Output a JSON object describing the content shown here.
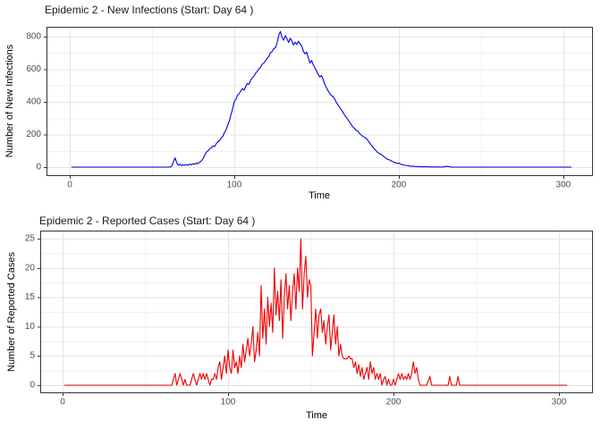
{
  "appearance": {
    "background": "#FFFFFF",
    "panel_background": "#FFFFFF",
    "panel_border": "#333333",
    "grid_major": "#E4E4E4",
    "grid_minor": "#F1F1F1",
    "tick_mark_color": "#333333",
    "tick_label_color": "#4D4D4D",
    "title_color": "#1A1A1A"
  },
  "chart_data": [
    {
      "type": "line",
      "title": "Epidemic 2 - New Infections (Start: Day 64 )",
      "xlabel": "Time",
      "ylabel": "Number of New Infections",
      "legend": "none",
      "grid": true,
      "line_color": "#0000E8",
      "x_ticks": [
        0,
        100,
        200,
        300
      ],
      "x_minor_ticks": [
        50,
        150,
        250
      ],
      "y_ticks": [
        0,
        200,
        400,
        600,
        800
      ],
      "y_minor_ticks": [
        100,
        300,
        500,
        700
      ],
      "x_range": [
        1,
        305
      ],
      "y_range": [
        0,
        832
      ],
      "points": [
        [
          1,
          0
        ],
        [
          6,
          0
        ],
        [
          12,
          0
        ],
        [
          18,
          0
        ],
        [
          24,
          0
        ],
        [
          30,
          0
        ],
        [
          36,
          0
        ],
        [
          42,
          0
        ],
        [
          48,
          0
        ],
        [
          54,
          0
        ],
        [
          60,
          0
        ],
        [
          61,
          1
        ],
        [
          62,
          6
        ],
        [
          63,
          32
        ],
        [
          64,
          57
        ],
        [
          65,
          28
        ],
        [
          66,
          12
        ],
        [
          67,
          18
        ],
        [
          68,
          9
        ],
        [
          69,
          15
        ],
        [
          70,
          11
        ],
        [
          71,
          16
        ],
        [
          72,
          12
        ],
        [
          73,
          19
        ],
        [
          74,
          14
        ],
        [
          75,
          21
        ],
        [
          76,
          17
        ],
        [
          77,
          25
        ],
        [
          78,
          21
        ],
        [
          79,
          31
        ],
        [
          80,
          38
        ],
        [
          81,
          52
        ],
        [
          82,
          72
        ],
        [
          83,
          92
        ],
        [
          84,
          99
        ],
        [
          85,
          112
        ],
        [
          86,
          118
        ],
        [
          87,
          130
        ],
        [
          88,
          126
        ],
        [
          89,
          143
        ],
        [
          90,
          155
        ],
        [
          91,
          162
        ],
        [
          92,
          178
        ],
        [
          93,
          188
        ],
        [
          94,
          212
        ],
        [
          95,
          228
        ],
        [
          96,
          258
        ],
        [
          97,
          282
        ],
        [
          98,
          322
        ],
        [
          99,
          358
        ],
        [
          100,
          402
        ],
        [
          101,
          415
        ],
        [
          102,
          442
        ],
        [
          103,
          450
        ],
        [
          104,
          468
        ],
        [
          105,
          482
        ],
        [
          106,
          472
        ],
        [
          107,
          496
        ],
        [
          108,
          512
        ],
        [
          109,
          508
        ],
        [
          110,
          534
        ],
        [
          111,
          548
        ],
        [
          112,
          558
        ],
        [
          113,
          576
        ],
        [
          114,
          588
        ],
        [
          115,
          602
        ],
        [
          116,
          612
        ],
        [
          117,
          632
        ],
        [
          118,
          638
        ],
        [
          119,
          652
        ],
        [
          120,
          668
        ],
        [
          121,
          678
        ],
        [
          122,
          702
        ],
        [
          123,
          708
        ],
        [
          124,
          726
        ],
        [
          125,
          732
        ],
        [
          126,
          762
        ],
        [
          127,
          806
        ],
        [
          128,
          832
        ],
        [
          129,
          796
        ],
        [
          130,
          778
        ],
        [
          131,
          806
        ],
        [
          132,
          788
        ],
        [
          133,
          764
        ],
        [
          134,
          790
        ],
        [
          135,
          774
        ],
        [
          136,
          748
        ],
        [
          137,
          766
        ],
        [
          138,
          752
        ],
        [
          139,
          772
        ],
        [
          140,
          756
        ],
        [
          141,
          744
        ],
        [
          142,
          710
        ],
        [
          143,
          694
        ],
        [
          144,
          706
        ],
        [
          145,
          670
        ],
        [
          146,
          638
        ],
        [
          147,
          654
        ],
        [
          148,
          628
        ],
        [
          149,
          608
        ],
        [
          150,
          590
        ],
        [
          151,
          568
        ],
        [
          152,
          552
        ],
        [
          153,
          562
        ],
        [
          154,
          538
        ],
        [
          155,
          508
        ],
        [
          156,
          488
        ],
        [
          157,
          468
        ],
        [
          158,
          452
        ],
        [
          159,
          438
        ],
        [
          160,
          434
        ],
        [
          161,
          418
        ],
        [
          162,
          398
        ],
        [
          163,
          382
        ],
        [
          164,
          368
        ],
        [
          165,
          352
        ],
        [
          166,
          338
        ],
        [
          167,
          320
        ],
        [
          168,
          306
        ],
        [
          169,
          292
        ],
        [
          170,
          278
        ],
        [
          171,
          262
        ],
        [
          172,
          248
        ],
        [
          173,
          238
        ],
        [
          174,
          226
        ],
        [
          175,
          222
        ],
        [
          176,
          208
        ],
        [
          177,
          198
        ],
        [
          178,
          190
        ],
        [
          179,
          184
        ],
        [
          180,
          178
        ],
        [
          181,
          166
        ],
        [
          182,
          152
        ],
        [
          183,
          138
        ],
        [
          184,
          126
        ],
        [
          185,
          113
        ],
        [
          186,
          103
        ],
        [
          187,
          91
        ],
        [
          188,
          84
        ],
        [
          189,
          79
        ],
        [
          190,
          73
        ],
        [
          191,
          64
        ],
        [
          192,
          56
        ],
        [
          193,
          49
        ],
        [
          194,
          45
        ],
        [
          195,
          41
        ],
        [
          196,
          35
        ],
        [
          197,
          31
        ],
        [
          198,
          27
        ],
        [
          199,
          23
        ],
        [
          200,
          25
        ],
        [
          201,
          19
        ],
        [
          202,
          15
        ],
        [
          203,
          13
        ],
        [
          204,
          11
        ],
        [
          205,
          10
        ],
        [
          206,
          8
        ],
        [
          207,
          6
        ],
        [
          208,
          5
        ],
        [
          209,
          6
        ],
        [
          210,
          4
        ],
        [
          211,
          3
        ],
        [
          212,
          4
        ],
        [
          213,
          2
        ],
        [
          214,
          3
        ],
        [
          215,
          2
        ],
        [
          216,
          3
        ],
        [
          217,
          2
        ],
        [
          218,
          2
        ],
        [
          219,
          1
        ],
        [
          220,
          2
        ],
        [
          221,
          1
        ],
        [
          222,
          1
        ],
        [
          224,
          1
        ],
        [
          226,
          0
        ],
        [
          228,
          3
        ],
        [
          229,
          5
        ],
        [
          230,
          4
        ],
        [
          231,
          2
        ],
        [
          232,
          0
        ],
        [
          236,
          0
        ],
        [
          240,
          0
        ],
        [
          248,
          0
        ],
        [
          256,
          0
        ],
        [
          264,
          0
        ],
        [
          272,
          0
        ],
        [
          280,
          0
        ],
        [
          288,
          0
        ],
        [
          296,
          0
        ],
        [
          305,
          0
        ]
      ]
    },
    {
      "type": "line",
      "title": "Epidemic 2 - Reported Cases (Start: Day 64 )",
      "xlabel": "Time",
      "ylabel": "Number of Reported Cases",
      "legend": "none",
      "grid": true,
      "line_color": "#EE0000",
      "x_ticks": [
        0,
        100,
        200,
        300
      ],
      "x_minor_ticks": [
        50,
        150,
        250
      ],
      "y_ticks": [
        0,
        5,
        10,
        15,
        20,
        25
      ],
      "y_minor_ticks": [
        2.5,
        7.5,
        12.5,
        17.5,
        22.5
      ],
      "x_range": [
        1,
        305
      ],
      "y_range": [
        0,
        25
      ],
      "points": [
        [
          1,
          0
        ],
        [
          10,
          0
        ],
        [
          20,
          0
        ],
        [
          30,
          0
        ],
        [
          40,
          0
        ],
        [
          50,
          0
        ],
        [
          60,
          0
        ],
        [
          65,
          0
        ],
        [
          66,
          0
        ],
        [
          67,
          1
        ],
        [
          68,
          2
        ],
        [
          69,
          0
        ],
        [
          70,
          1
        ],
        [
          71,
          2
        ],
        [
          72,
          1
        ],
        [
          73,
          0
        ],
        [
          74,
          1
        ],
        [
          75,
          0
        ],
        [
          76,
          0
        ],
        [
          77,
          0
        ],
        [
          78,
          1
        ],
        [
          79,
          2
        ],
        [
          80,
          1
        ],
        [
          81,
          0
        ],
        [
          82,
          1
        ],
        [
          83,
          2
        ],
        [
          84,
          1
        ],
        [
          85,
          2
        ],
        [
          86,
          1
        ],
        [
          87,
          2
        ],
        [
          88,
          1
        ],
        [
          89,
          0
        ],
        [
          90,
          1
        ],
        [
          91,
          1
        ],
        [
          92,
          2
        ],
        [
          93,
          1
        ],
        [
          94,
          3
        ],
        [
          95,
          4
        ],
        [
          96,
          1
        ],
        [
          97,
          3
        ],
        [
          98,
          5
        ],
        [
          99,
          2
        ],
        [
          100,
          6
        ],
        [
          101,
          3
        ],
        [
          102,
          2
        ],
        [
          103,
          6
        ],
        [
          104,
          3
        ],
        [
          105,
          4
        ],
        [
          106,
          2
        ],
        [
          107,
          5
        ],
        [
          108,
          3
        ],
        [
          109,
          7
        ],
        [
          110,
          4
        ],
        [
          111,
          6
        ],
        [
          112,
          8
        ],
        [
          113,
          5
        ],
        [
          114,
          7
        ],
        [
          115,
          10
        ],
        [
          116,
          4
        ],
        [
          117,
          6
        ],
        [
          118,
          9
        ],
        [
          119,
          5
        ],
        [
          120,
          17
        ],
        [
          121,
          8
        ],
        [
          122,
          13
        ],
        [
          123,
          7
        ],
        [
          124,
          15
        ],
        [
          125,
          10
        ],
        [
          126,
          14
        ],
        [
          127,
          9
        ],
        [
          128,
          20
        ],
        [
          129,
          12
        ],
        [
          130,
          16
        ],
        [
          131,
          11
        ],
        [
          132,
          18
        ],
        [
          133,
          8
        ],
        [
          134,
          15
        ],
        [
          135,
          19
        ],
        [
          136,
          13
        ],
        [
          137,
          17
        ],
        [
          138,
          11
        ],
        [
          139,
          16
        ],
        [
          140,
          19
        ],
        [
          141,
          13
        ],
        [
          142,
          20
        ],
        [
          143,
          16
        ],
        [
          144,
          25
        ],
        [
          145,
          13
        ],
        [
          146,
          19
        ],
        [
          147,
          22
        ],
        [
          148,
          15
        ],
        [
          149,
          18
        ],
        [
          150,
          17
        ],
        [
          151,
          5
        ],
        [
          152,
          9
        ],
        [
          153,
          13
        ],
        [
          154,
          8
        ],
        [
          155,
          12
        ],
        [
          156,
          13
        ],
        [
          157,
          9
        ],
        [
          158,
          11
        ],
        [
          159,
          7
        ],
        [
          160,
          10
        ],
        [
          161,
          12
        ],
        [
          162,
          6
        ],
        [
          163,
          9
        ],
        [
          164,
          12
        ],
        [
          165,
          7
        ],
        [
          166,
          10
        ],
        [
          167,
          5
        ],
        [
          168,
          7
        ],
        [
          169,
          5
        ],
        [
          170,
          4.5
        ],
        [
          171,
          4.5
        ],
        [
          172,
          4.5
        ],
        [
          173,
          5
        ],
        [
          174,
          4.5
        ],
        [
          175,
          4.5
        ],
        [
          176,
          3
        ],
        [
          177,
          4
        ],
        [
          178,
          2
        ],
        [
          179,
          3.5
        ],
        [
          180,
          1.5
        ],
        [
          181,
          3
        ],
        [
          182,
          1
        ],
        [
          183,
          2
        ],
        [
          184,
          3
        ],
        [
          185,
          1
        ],
        [
          186,
          4
        ],
        [
          187,
          2
        ],
        [
          188,
          3
        ],
        [
          189,
          1
        ],
        [
          190,
          2
        ],
        [
          191,
          1
        ],
        [
          192,
          2
        ],
        [
          193,
          0
        ],
        [
          194,
          1
        ],
        [
          195,
          1.5
        ],
        [
          196,
          0
        ],
        [
          197,
          1
        ],
        [
          198,
          0
        ],
        [
          199,
          0
        ],
        [
          200,
          1
        ],
        [
          201,
          0
        ],
        [
          202,
          1
        ],
        [
          203,
          2
        ],
        [
          204,
          1
        ],
        [
          205,
          2
        ],
        [
          206,
          1
        ],
        [
          207,
          1.5
        ],
        [
          208,
          1
        ],
        [
          209,
          2
        ],
        [
          210,
          1
        ],
        [
          211,
          2
        ],
        [
          212,
          4
        ],
        [
          213,
          2
        ],
        [
          214,
          3
        ],
        [
          215,
          1
        ],
        [
          216,
          0
        ],
        [
          218,
          0
        ],
        [
          220,
          0
        ],
        [
          222,
          1.5
        ],
        [
          223,
          0
        ],
        [
          226,
          0
        ],
        [
          230,
          0
        ],
        [
          233,
          0
        ],
        [
          234,
          1.5
        ],
        [
          235,
          0
        ],
        [
          238,
          0
        ],
        [
          239,
          1.5
        ],
        [
          240,
          0
        ],
        [
          244,
          0
        ],
        [
          252,
          0
        ],
        [
          260,
          0
        ],
        [
          270,
          0
        ],
        [
          280,
          0
        ],
        [
          290,
          0
        ],
        [
          300,
          0
        ],
        [
          305,
          0
        ]
      ]
    }
  ]
}
